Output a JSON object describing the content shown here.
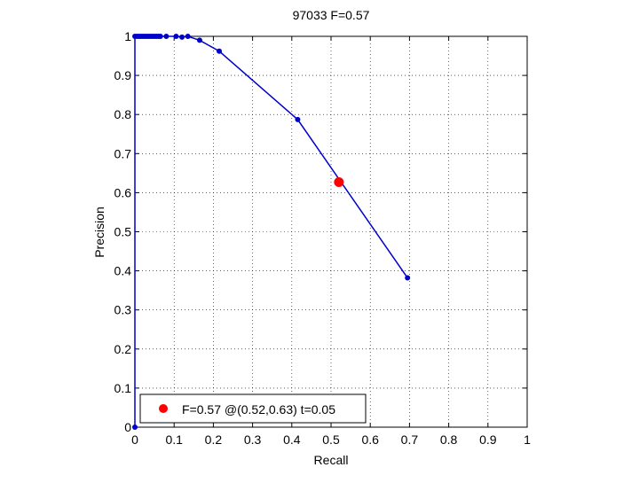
{
  "chart_data": {
    "type": "line",
    "title": "97033 F=0.57",
    "xlabel": "Recall",
    "ylabel": "Precision",
    "xlim": [
      0,
      1
    ],
    "ylim": [
      0,
      1
    ],
    "grid": true,
    "xticks": [
      "0",
      "0.1",
      "0.2",
      "0.3",
      "0.4",
      "0.5",
      "0.6",
      "0.7",
      "0.8",
      "0.9",
      "1"
    ],
    "yticks": [
      "0",
      "0.1",
      "0.2",
      "0.3",
      "0.4",
      "0.5",
      "0.6",
      "0.7",
      "0.8",
      "0.9",
      "1"
    ],
    "series": [
      {
        "color": "#0000cc",
        "points": [
          {
            "x": 0.0,
            "y": 0.0
          },
          {
            "x": 0.0,
            "y": 1.0
          },
          {
            "x": 0.005,
            "y": 1.0
          },
          {
            "x": 0.01,
            "y": 1.0
          },
          {
            "x": 0.015,
            "y": 1.0
          },
          {
            "x": 0.02,
            "y": 1.0
          },
          {
            "x": 0.025,
            "y": 1.0
          },
          {
            "x": 0.03,
            "y": 1.0
          },
          {
            "x": 0.035,
            "y": 1.0
          },
          {
            "x": 0.04,
            "y": 1.0
          },
          {
            "x": 0.045,
            "y": 1.0
          },
          {
            "x": 0.05,
            "y": 1.0
          },
          {
            "x": 0.055,
            "y": 1.0
          },
          {
            "x": 0.06,
            "y": 1.0
          },
          {
            "x": 0.065,
            "y": 1.0
          },
          {
            "x": 0.08,
            "y": 1.0
          },
          {
            "x": 0.105,
            "y": 1.0
          },
          {
            "x": 0.12,
            "y": 0.998
          },
          {
            "x": 0.135,
            "y": 1.0
          },
          {
            "x": 0.165,
            "y": 0.99
          },
          {
            "x": 0.215,
            "y": 0.962
          },
          {
            "x": 0.415,
            "y": 0.787
          },
          {
            "x": 0.695,
            "y": 0.382
          }
        ]
      }
    ],
    "highlight_point": {
      "x": 0.52,
      "y": 0.627,
      "color": "#ff0000"
    },
    "legend": {
      "placement": "bottom-left",
      "text": "F=0.57 @(0.52,0.63) t=0.05"
    }
  }
}
